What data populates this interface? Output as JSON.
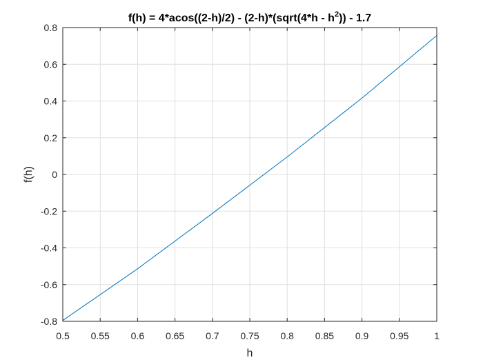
{
  "chart_data": {
    "type": "line",
    "title": {
      "part1": "f(h) = 4*acos((2-h)/2) - (2-h)*(sqrt(4*h - h",
      "superscript": "2",
      "part2": ")) - 1.7"
    },
    "xlabel": "h",
    "ylabel": "f(h)",
    "xlim": [
      0.5,
      1
    ],
    "ylim": [
      -0.8,
      0.8
    ],
    "grid": true,
    "xticks": [
      0.5,
      0.55,
      0.6,
      0.65,
      0.7,
      0.75,
      0.8,
      0.85,
      0.9,
      0.95,
      1
    ],
    "xtick_labels": [
      "0.5",
      "0.55",
      "0.6",
      "0.65",
      "0.7",
      "0.75",
      "0.8",
      "0.85",
      "0.9",
      "0.95",
      "1"
    ],
    "yticks": [
      -0.8,
      -0.6,
      -0.4,
      -0.2,
      0,
      0.2,
      0.4,
      0.6,
      0.8
    ],
    "ytick_labels": [
      "-0.8",
      "-0.6",
      "-0.4",
      "-0.2",
      "0",
      "0.2",
      "0.4",
      "0.6",
      "0.8"
    ],
    "series": [
      {
        "color": "#0072BD",
        "x": [
          0.5,
          0.6,
          0.7,
          0.8,
          0.9,
          1.0
        ],
        "y": [
          -0.7952,
          -0.5138,
          -0.2125,
          0.0952,
          0.4159,
          0.7568
        ]
      }
    ]
  }
}
